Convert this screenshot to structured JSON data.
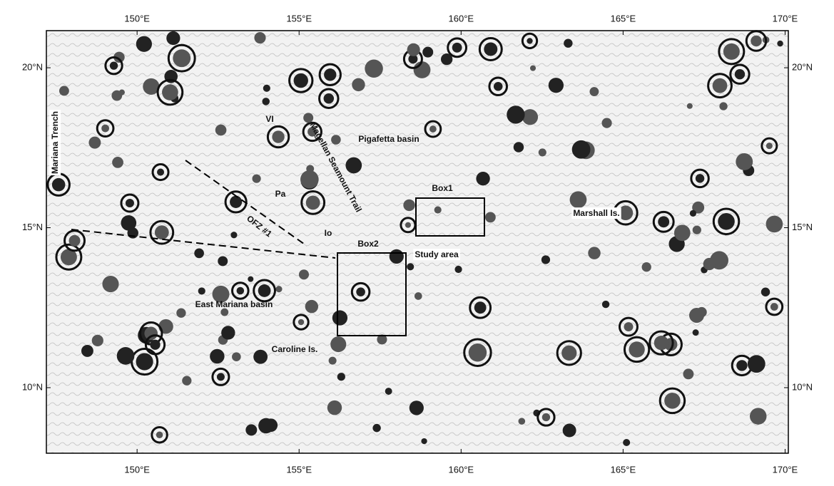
{
  "map": {
    "xlim": [
      147.2,
      170.1
    ],
    "ylim": [
      7.95,
      21.16
    ],
    "xticks": [
      {
        "value": 150,
        "label": "150°E"
      },
      {
        "value": 155,
        "label": "155°E"
      },
      {
        "value": 160,
        "label": "160°E"
      },
      {
        "value": 165,
        "label": "165°E"
      },
      {
        "value": 170,
        "label": "170°E"
      }
    ],
    "yticks": [
      {
        "value": 10,
        "label": "10°N"
      },
      {
        "value": 15,
        "label": "15°N"
      },
      {
        "value": 20,
        "label": "20°N"
      }
    ],
    "labels": [
      "Mariana Trench",
      "Magellan Seamount Trail",
      "Pigafetta basin",
      "VI",
      "Pa",
      "OFZ #1",
      "Io",
      "Box1",
      "Box2",
      "Study area",
      "Marshall Is.",
      "East Mariana basin",
      "Caroline Is."
    ]
  }
}
